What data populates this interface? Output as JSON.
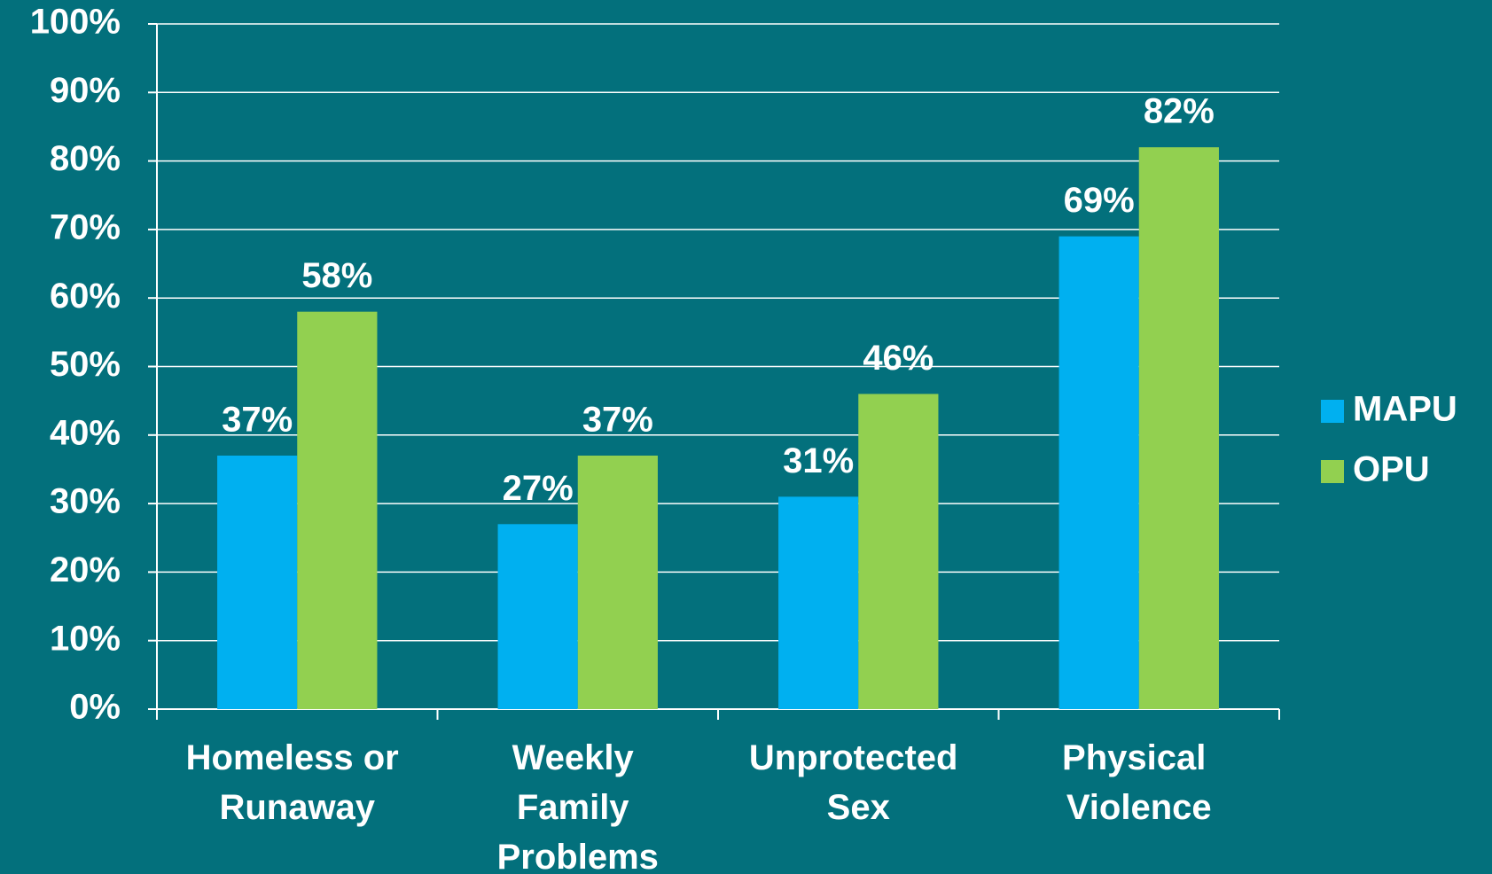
{
  "chart_data": {
    "type": "bar",
    "categories": [
      "Homeless or Runaway",
      "Weekly Family Problems",
      "Unprotected Sex",
      "Physical Violence"
    ],
    "series": [
      {
        "name": "MAPU",
        "color": "#00b0f0",
        "values": [
          37,
          27,
          31,
          69
        ],
        "value_labels": [
          "37%",
          "27%",
          "31%",
          "69%"
        ]
      },
      {
        "name": "OPU",
        "color": "#92d050",
        "values": [
          58,
          37,
          46,
          82
        ],
        "value_labels": [
          "58%",
          "37%",
          "46%",
          "82%"
        ]
      }
    ],
    "ylim": [
      0,
      100
    ],
    "yticks": [
      {
        "value": 0,
        "label": "0%"
      },
      {
        "value": 10,
        "label": "10%"
      },
      {
        "value": 20,
        "label": "20%"
      },
      {
        "value": 30,
        "label": "30%"
      },
      {
        "value": 40,
        "label": "40%"
      },
      {
        "value": 50,
        "label": "50%"
      },
      {
        "value": 60,
        "label": "60%"
      },
      {
        "value": 70,
        "label": "70%"
      },
      {
        "value": 80,
        "label": "80%"
      },
      {
        "value": 90,
        "label": "90%"
      },
      {
        "value": 100,
        "label": "100%"
      }
    ],
    "grid": true,
    "legend": "right"
  }
}
